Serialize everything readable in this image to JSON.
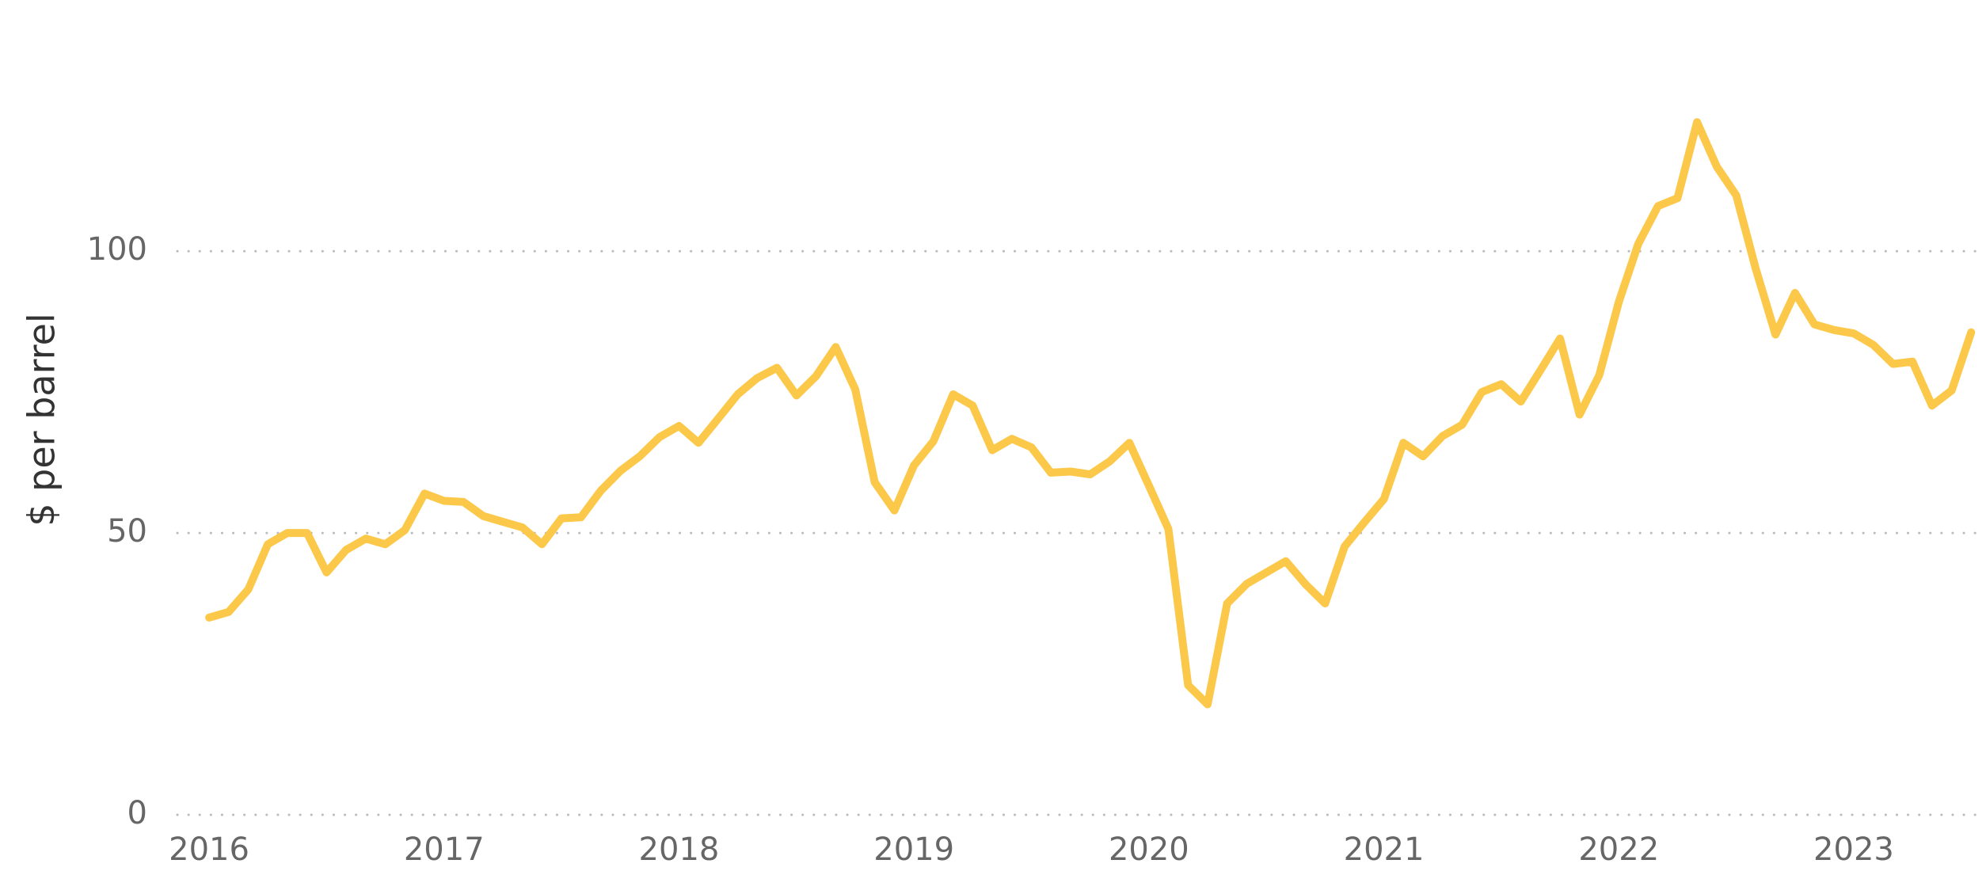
{
  "chart_data": {
    "type": "line",
    "y_axis_label": "$ per barrel",
    "x": [
      2016.0,
      2016.083,
      2016.167,
      2016.25,
      2016.333,
      2016.417,
      2016.5,
      2016.583,
      2016.667,
      2016.75,
      2016.833,
      2016.917,
      2017.0,
      2017.083,
      2017.167,
      2017.25,
      2017.333,
      2017.417,
      2017.5,
      2017.583,
      2017.667,
      2017.75,
      2017.833,
      2017.917,
      2018.0,
      2018.083,
      2018.167,
      2018.25,
      2018.333,
      2018.417,
      2018.5,
      2018.583,
      2018.667,
      2018.75,
      2018.833,
      2018.917,
      2019.0,
      2019.083,
      2019.167,
      2019.25,
      2019.333,
      2019.417,
      2019.5,
      2019.583,
      2019.667,
      2019.75,
      2019.833,
      2019.917,
      2020.0,
      2020.083,
      2020.167,
      2020.25,
      2020.333,
      2020.417,
      2020.5,
      2020.583,
      2020.667,
      2020.75,
      2020.833,
      2020.917,
      2021.0,
      2021.083,
      2021.167,
      2021.25,
      2021.333,
      2021.417,
      2021.5,
      2021.583,
      2021.667,
      2021.75,
      2021.833,
      2021.917,
      2022.0,
      2022.083,
      2022.167,
      2022.25,
      2022.333,
      2022.417,
      2022.5,
      2022.583,
      2022.667,
      2022.75,
      2022.833,
      2022.917,
      2023.0,
      2023.083,
      2023.167,
      2023.25,
      2023.333,
      2023.417,
      2023.5
    ],
    "series": [
      {
        "color": "#fcc84a",
        "values": [
          35,
          36,
          40,
          48,
          50,
          50,
          43,
          47,
          49,
          48,
          50.5,
          57,
          55.7,
          55.5,
          53,
          52,
          51,
          48,
          52.6,
          52.8,
          57.5,
          61,
          63.6,
          67,
          69,
          66,
          70.3,
          74.6,
          77.5,
          79.3,
          74.4,
          77.8,
          83,
          75.5,
          59,
          54,
          62,
          66.3,
          74.6,
          72.6,
          64.7,
          66.7,
          65.2,
          60.7,
          60.9,
          60.4,
          62.7,
          66,
          58.4,
          50.7,
          23,
          19.6,
          37.5,
          41,
          43,
          45,
          40.9,
          37.5,
          47.6,
          51.9,
          56,
          66,
          63.6,
          67.2,
          69.2,
          75,
          76.4,
          73.3,
          78.9,
          84.5,
          71,
          78,
          91,
          101.3,
          108,
          109.4,
          122.9,
          115,
          109.9,
          96.9,
          85.2,
          92.6,
          87,
          86,
          85.4,
          83.4,
          80,
          80.4,
          72.6,
          75.3,
          85.6
        ]
      }
    ],
    "xlim": [
      2015.865,
      2023.563
    ],
    "xticks": [
      2016,
      2017,
      2018,
      2019,
      2020,
      2021,
      2022,
      2023
    ],
    "ylim": [
      0,
      144
    ],
    "yticks": [
      0,
      50,
      100
    ],
    "grid": true
  }
}
